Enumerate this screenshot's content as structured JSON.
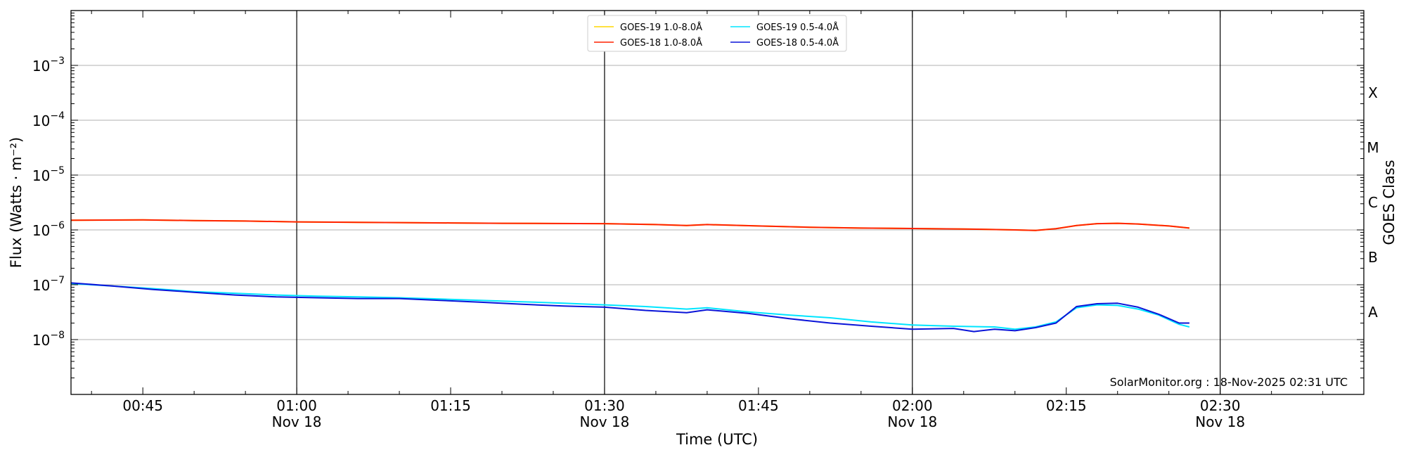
{
  "chart_data": {
    "type": "line",
    "y_scale": "log",
    "grid": "horizontal at decades",
    "legend_position": "top-center",
    "xlabel": "Time (UTC)",
    "ylabel": "Flux (Watts · m⁻²)",
    "ylabel_right": "GOES Class",
    "xlim": [
      "2025-11-18T00:38",
      "2025-11-18T02:44"
    ],
    "ylim": [
      1e-09,
      0.01
    ],
    "x_ticks": [
      {
        "time": "00:45",
        "label": "00:45",
        "date_label": ""
      },
      {
        "time": "01:00",
        "label": "01:00",
        "date_label": "Nov 18"
      },
      {
        "time": "01:15",
        "label": "01:15",
        "date_label": ""
      },
      {
        "time": "01:30",
        "label": "01:30",
        "date_label": "Nov 18"
      },
      {
        "time": "01:45",
        "label": "01:45",
        "date_label": ""
      },
      {
        "time": "02:00",
        "label": "02:00",
        "date_label": "Nov 18"
      },
      {
        "time": "02:15",
        "label": "02:15",
        "date_label": ""
      },
      {
        "time": "02:30",
        "label": "02:30",
        "date_label": "Nov 18"
      }
    ],
    "vertical_lines": [
      "01:00",
      "01:30",
      "02:00",
      "02:30"
    ],
    "y_ticks": [
      {
        "value": 0.001,
        "base": "10",
        "exp": "−3"
      },
      {
        "value": 0.0001,
        "base": "10",
        "exp": "−4"
      },
      {
        "value": 1e-05,
        "base": "10",
        "exp": "−5"
      },
      {
        "value": 1e-06,
        "base": "10",
        "exp": "−6"
      },
      {
        "value": 1e-07,
        "base": "10",
        "exp": "−7"
      },
      {
        "value": 1e-08,
        "base": "10",
        "exp": "−8"
      }
    ],
    "goes_classes": [
      {
        "label": "X",
        "flux": 0.0001
      },
      {
        "label": "M",
        "flux": 1e-05
      },
      {
        "label": "C",
        "flux": 1e-06
      },
      {
        "label": "B",
        "flux": 1e-07
      },
      {
        "label": "A",
        "flux": 1e-08
      }
    ],
    "annotation": "SolarMonitor.org : 18-Nov-2025 02:31 UTC",
    "series": [
      {
        "name": "GOES-19 1.0-8.0Å",
        "color": "#ffd700",
        "x": [
          "00:38",
          "00:45",
          "00:50",
          "00:55",
          "01:00",
          "01:05",
          "01:10",
          "01:15",
          "01:20",
          "01:25",
          "01:30",
          "01:35",
          "01:38",
          "01:40",
          "01:45",
          "01:50",
          "01:55",
          "02:00",
          "02:05",
          "02:10",
          "02:12",
          "02:14",
          "02:16",
          "02:18",
          "02:20",
          "02:22",
          "02:25",
          "02:27"
        ],
        "values": [
          1.5e-06,
          1.52e-06,
          1.48e-06,
          1.45e-06,
          1.4e-06,
          1.38e-06,
          1.36e-06,
          1.34e-06,
          1.32e-06,
          1.31e-06,
          1.3e-06,
          1.25e-06,
          1.2e-06,
          1.25e-06,
          1.18e-06,
          1.12e-06,
          1.08e-06,
          1.06e-06,
          1.04e-06,
          1e-06,
          9.8e-07,
          1.05e-06,
          1.2e-06,
          1.3e-06,
          1.32e-06,
          1.28e-06,
          1.18e-06,
          1.08e-06
        ]
      },
      {
        "name": "GOES-18 1.0-8.0Å",
        "color": "#ff2200",
        "x": [
          "00:38",
          "00:45",
          "00:50",
          "00:55",
          "01:00",
          "01:05",
          "01:10",
          "01:15",
          "01:20",
          "01:25",
          "01:30",
          "01:35",
          "01:38",
          "01:40",
          "01:45",
          "01:50",
          "01:55",
          "02:00",
          "02:05",
          "02:10",
          "02:12",
          "02:14",
          "02:16",
          "02:18",
          "02:20",
          "02:22",
          "02:25",
          "02:27"
        ],
        "values": [
          1.5e-06,
          1.52e-06,
          1.48e-06,
          1.45e-06,
          1.4e-06,
          1.38e-06,
          1.36e-06,
          1.34e-06,
          1.32e-06,
          1.31e-06,
          1.3e-06,
          1.25e-06,
          1.2e-06,
          1.25e-06,
          1.18e-06,
          1.12e-06,
          1.08e-06,
          1.06e-06,
          1.04e-06,
          1e-06,
          9.8e-07,
          1.05e-06,
          1.2e-06,
          1.3e-06,
          1.32e-06,
          1.28e-06,
          1.18e-06,
          1.08e-06
        ]
      },
      {
        "name": "GOES-19 0.5-4.0Å",
        "color": "#00e5ff",
        "x": [
          "00:38",
          "00:42",
          "00:46",
          "00:50",
          "00:54",
          "00:58",
          "01:02",
          "01:06",
          "01:10",
          "01:14",
          "01:18",
          "01:22",
          "01:26",
          "01:30",
          "01:34",
          "01:38",
          "01:40",
          "01:44",
          "01:48",
          "01:52",
          "01:56",
          "02:00",
          "02:04",
          "02:08",
          "02:10",
          "02:12",
          "02:14",
          "02:16",
          "02:18",
          "02:20",
          "02:22",
          "02:24",
          "02:26",
          "02:27"
        ],
        "values": [
          1.05e-07,
          9.5e-08,
          8.5e-08,
          7.5e-08,
          7e-08,
          6.5e-08,
          6.2e-08,
          6e-08,
          5.8e-08,
          5.5e-08,
          5.2e-08,
          4.9e-08,
          4.6e-08,
          4.3e-08,
          4e-08,
          3.6e-08,
          3.8e-08,
          3.2e-08,
          2.8e-08,
          2.5e-08,
          2.1e-08,
          1.85e-08,
          1.75e-08,
          1.7e-08,
          1.55e-08,
          1.7e-08,
          2.1e-08,
          3.8e-08,
          4.3e-08,
          4.2e-08,
          3.6e-08,
          2.8e-08,
          1.9e-08,
          1.7e-08
        ]
      },
      {
        "name": "GOES-18 0.5-4.0Å",
        "color": "#0a14d8",
        "x": [
          "00:38",
          "00:42",
          "00:46",
          "00:50",
          "00:54",
          "00:58",
          "01:02",
          "01:06",
          "01:10",
          "01:14",
          "01:18",
          "01:22",
          "01:26",
          "01:30",
          "01:34",
          "01:38",
          "01:40",
          "01:44",
          "01:48",
          "01:52",
          "01:56",
          "02:00",
          "02:04",
          "02:06",
          "02:08",
          "02:10",
          "02:12",
          "02:14",
          "02:16",
          "02:18",
          "02:20",
          "02:22",
          "02:24",
          "02:26",
          "02:27"
        ],
        "values": [
          1.08e-07,
          9.5e-08,
          8.2e-08,
          7.3e-08,
          6.5e-08,
          6e-08,
          5.8e-08,
          5.6e-08,
          5.6e-08,
          5.2e-08,
          4.8e-08,
          4.4e-08,
          4.1e-08,
          3.9e-08,
          3.4e-08,
          3.1e-08,
          3.5e-08,
          3e-08,
          2.4e-08,
          2e-08,
          1.75e-08,
          1.55e-08,
          1.6e-08,
          1.4e-08,
          1.55e-08,
          1.45e-08,
          1.65e-08,
          2e-08,
          4e-08,
          4.5e-08,
          4.6e-08,
          3.9e-08,
          2.9e-08,
          2e-08,
          2e-08
        ]
      }
    ]
  }
}
